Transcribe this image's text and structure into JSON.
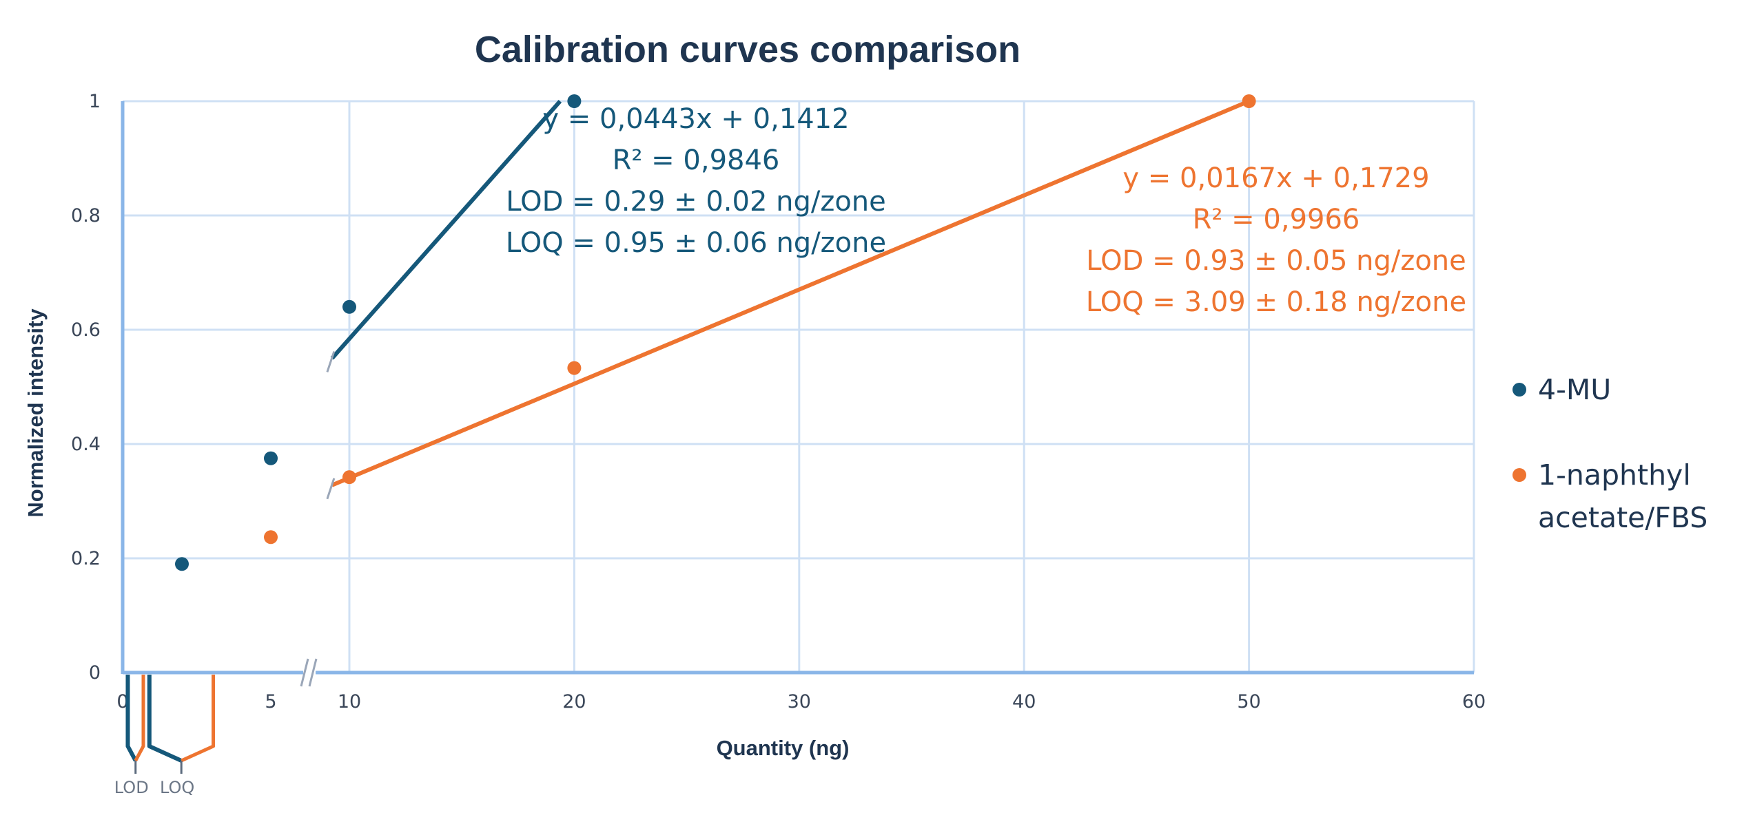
{
  "chart_data": {
    "type": "scatter",
    "title": "Calibration curves comparison",
    "xlabel": "Quantity (ng)",
    "ylabel": "Normalized intensity",
    "xlim": [
      0,
      60
    ],
    "ylim": [
      0,
      1
    ],
    "x_axis_break": [
      7.5,
      10
    ],
    "x_ticks": [
      {
        "value": 0,
        "label": "0"
      },
      {
        "value": 5,
        "label": "5"
      },
      {
        "value": 10,
        "label": "10"
      },
      {
        "value": 20,
        "label": "20"
      },
      {
        "value": 30,
        "label": "30"
      },
      {
        "value": 40,
        "label": "40"
      },
      {
        "value": 50,
        "label": "50"
      },
      {
        "value": 60,
        "label": "60"
      }
    ],
    "y_ticks": [
      {
        "value": 0,
        "label": "0"
      },
      {
        "value": 0.2,
        "label": "0.2"
      },
      {
        "value": 0.4,
        "label": "0.4"
      },
      {
        "value": 0.6,
        "label": "0.6"
      },
      {
        "value": 0.8,
        "label": "0.8"
      },
      {
        "value": 1,
        "label": "1"
      }
    ],
    "grid": true,
    "legend_position": "right",
    "series": [
      {
        "name": "4-MU",
        "color": "#15587a",
        "points": [
          {
            "x": 2,
            "y": 0.19
          },
          {
            "x": 5,
            "y": 0.375
          },
          {
            "x": 10,
            "y": 0.64
          },
          {
            "x": 20,
            "y": 1.0
          }
        ],
        "trendline": {
          "x": [
            9.23,
            19.37
          ],
          "y": [
            0.55,
            1.0
          ]
        },
        "annotation": [
          "y = 0,0443x + 0,1412",
          "R² = 0,9846",
          "LOD = 0.29 ± 0.02 ng/zone",
          "LOQ = 0.95 ± 0.06 ng/zone"
        ],
        "lod": 0.29,
        "loq": 0.95
      },
      {
        "name": "1-naphthyl acetate/FBS",
        "legend_lines": [
          "1-naphthyl",
          "acetate/FBS"
        ],
        "color": "#ee7430",
        "points": [
          {
            "x": 5,
            "y": 0.237
          },
          {
            "x": 10,
            "y": 0.342
          },
          {
            "x": 20,
            "y": 0.533
          },
          {
            "x": 50,
            "y": 1.0
          }
        ],
        "trendline": {
          "x": [
            9.23,
            50
          ],
          "y": [
            0.328,
            1.0
          ]
        },
        "annotation": [
          "y = 0,0167x + 0,1729",
          "R² = 0,9966",
          "LOD = 0.93 ± 0.05 ng/zone",
          "LOQ = 3.09 ± 0.18 ng/zone"
        ],
        "lod": 0.93,
        "loq": 3.09
      }
    ],
    "bracket_labels": {
      "lod": "LOD",
      "loq": "LOQ"
    }
  }
}
